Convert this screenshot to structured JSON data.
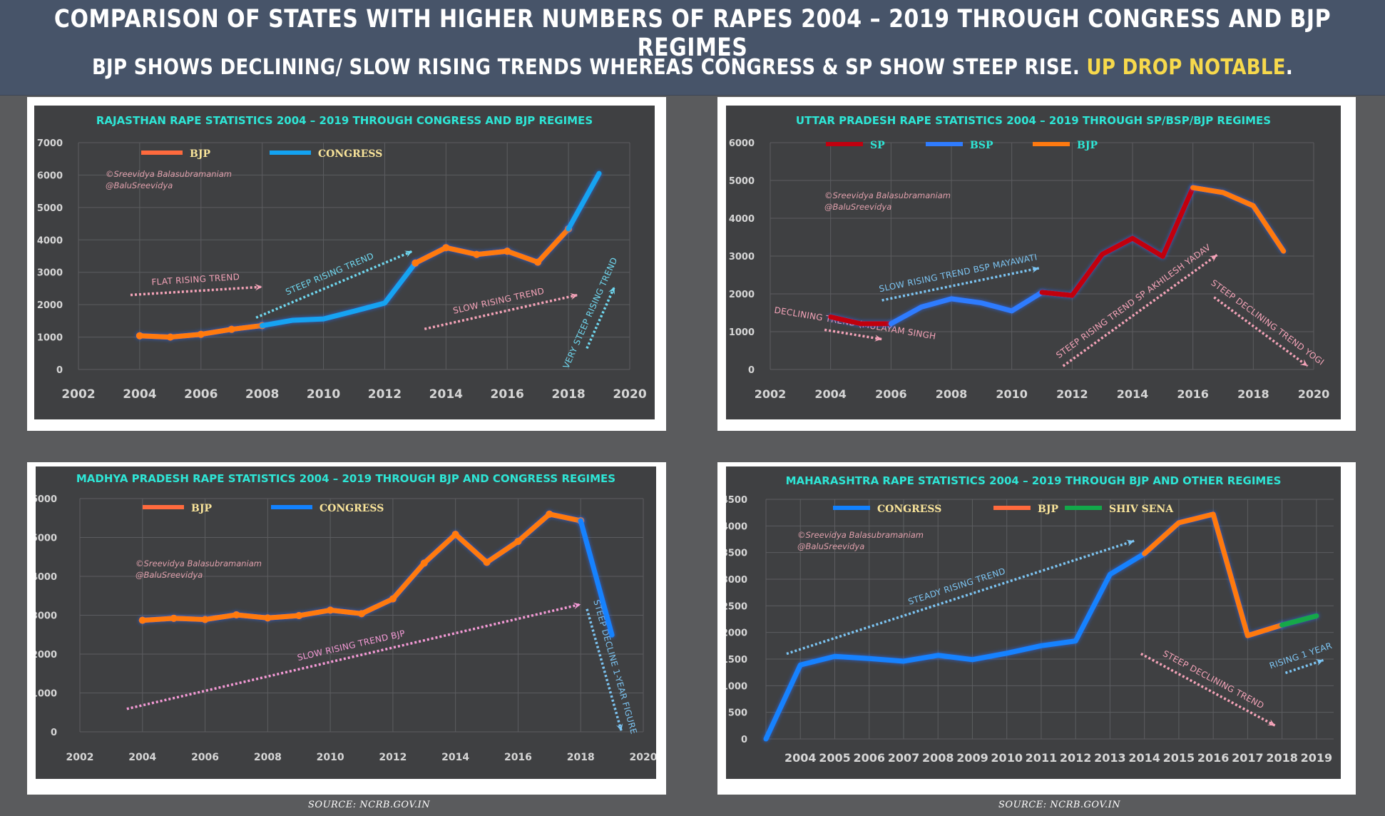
{
  "banner": {
    "title": "COMPARISON OF STATES WITH HIGHER NUMBERS OF RAPES 2004 – 2019  THROUGH CONGRESS AND BJP REGIMES",
    "subtitle_main": "BJP SHOWS DECLINING/ SLOW RISING TRENDS WHEREAS CONGRESS & SP SHOW STEEP RISE. ",
    "subtitle_highlight": "UP DROP NOTABLE",
    "subtitle_end": "."
  },
  "colors": {
    "banner_bg": "#475469",
    "page_bg": "#5a5b5d",
    "chart_bg": "#3f4042",
    "title_cyan": "#2ee6d6",
    "legend_label_yellow": "#f9e49a",
    "bjp_orange": "#ff7a10",
    "congress_blue": "#12a3f2",
    "congress_blue_deep": "#1282ff",
    "sp_red": "#c1000f",
    "bsp_blue": "#2f7cff",
    "shiv_sena_green": "#12a84a",
    "annotation_pink": "#f4a3b8",
    "annotation_cyan": "#6fd7ef",
    "annotation_lightblue": "#7cc4f2",
    "watermark_pink": "#e0a0ac"
  },
  "watermark": [
    "©Sreevidya Balasubramaniam",
    "@BaluSreevidya"
  ],
  "footer": {
    "source_left": "SOURCE:  NCRB.GOV.IN",
    "source_right": "SOURCE:  NCRB.GOV.IN"
  },
  "chart_data": [
    {
      "id": "rajasthan",
      "type": "line",
      "title": "RAJASTHAN RAPE STATISTICS 2004 – 2019 THROUGH CONGRESS AND BJP REGIMES",
      "xlabel": "",
      "ylabel": "",
      "xlim": [
        2002,
        2020
      ],
      "ylim": [
        0,
        7000
      ],
      "x_ticks": [
        2002,
        2004,
        2006,
        2008,
        2010,
        2012,
        2014,
        2016,
        2018,
        2020
      ],
      "y_ticks": [
        0,
        1000,
        2000,
        3000,
        4000,
        5000,
        6000,
        7000
      ],
      "grid": true,
      "legend": [
        {
          "name": "BJP",
          "color": "#ff6a3d"
        },
        {
          "name": "CONGRESS",
          "color": "#12a3f2"
        }
      ],
      "legend_position": "top-left",
      "series": [
        {
          "name": "BJP",
          "color": "#ff7a10",
          "x": [
            2004,
            2005,
            2006,
            2007,
            2008
          ],
          "values": [
            1040,
            1000,
            1085,
            1240,
            1355
          ]
        },
        {
          "name": "CONGRESS",
          "color": "#12a3f2",
          "x": [
            2008,
            2009,
            2010,
            2011,
            2012,
            2013
          ],
          "values": [
            1355,
            1520,
            1560,
            1800,
            2050,
            3285
          ]
        },
        {
          "name": "BJP",
          "color": "#ff7a10",
          "x": [
            2013,
            2014,
            2015,
            2016,
            2017,
            2018
          ],
          "values": [
            3285,
            3760,
            3550,
            3650,
            3310,
            4340
          ]
        },
        {
          "name": "CONGRESS",
          "color": "#12a3f2",
          "x": [
            2018,
            2019
          ],
          "values": [
            4340,
            6050
          ]
        }
      ],
      "annotations": [
        {
          "text": "FLAT RISING TREND",
          "color": "#f4a3b8",
          "from": [
            2003.7,
            2300
          ],
          "to": [
            2008.0,
            2550
          ]
        },
        {
          "text": "STEEP RISING TREND",
          "color": "#6fd7ef",
          "from": [
            2007.8,
            1600
          ],
          "to": [
            2012.9,
            3650
          ]
        },
        {
          "text": "SLOW RISING TREND",
          "color": "#f4a3b8",
          "from": [
            2013.3,
            1250
          ],
          "to": [
            2018.3,
            2300
          ]
        },
        {
          "text": "VERY STEEP RISING TREND",
          "color": "#6fd7ef",
          "from": [
            2018.6,
            650
          ],
          "to": [
            2019.5,
            2550
          ]
        }
      ]
    },
    {
      "id": "uttar-pradesh",
      "type": "line",
      "title": "UTTAR PRADESH RAPE STATISTICS 2004 – 2019  THROUGH SP/BSP/BJP REGIMES",
      "xlabel": "",
      "ylabel": "",
      "xlim": [
        2002,
        2020
      ],
      "ylim": [
        0,
        6000
      ],
      "x_ticks": [
        2002,
        2004,
        2006,
        2008,
        2010,
        2012,
        2014,
        2016,
        2018,
        2020
      ],
      "y_ticks": [
        0,
        1000,
        2000,
        3000,
        4000,
        5000,
        6000
      ],
      "grid": true,
      "legend": [
        {
          "name": "SP",
          "color": "#c1000f"
        },
        {
          "name": "BSP",
          "color": "#2f7cff"
        },
        {
          "name": "BJP",
          "color": "#ff7a10"
        }
      ],
      "legend_position": "top-left",
      "series": [
        {
          "name": "SP",
          "color": "#c1000f",
          "x": [
            2004,
            2005,
            2006
          ],
          "values": [
            1390,
            1210,
            1210
          ]
        },
        {
          "name": "BSP",
          "color": "#2f7cff",
          "x": [
            2006,
            2007,
            2008,
            2009,
            2010,
            2011
          ],
          "values": [
            1210,
            1650,
            1870,
            1760,
            1550,
            2040
          ]
        },
        {
          "name": "SP",
          "color": "#c1000f",
          "x": [
            2011,
            2012,
            2013,
            2014,
            2015,
            2016
          ],
          "values": [
            2040,
            1960,
            3050,
            3470,
            2990,
            4810
          ]
        },
        {
          "name": "BJP",
          "color": "#ff7a10",
          "x": [
            2016,
            2017,
            2018,
            2019
          ],
          "values": [
            4810,
            4680,
            4330,
            3130
          ]
        }
      ],
      "annotations": [
        {
          "text": "DECLINING TREND (MULAYAM SINGH",
          "color": "#f4a3b8",
          "from": [
            2003.8,
            1050
          ],
          "to": [
            2005.7,
            800
          ]
        },
        {
          "text": "SLOW RISING TREND BSP MAYAWATI",
          "color": "#7cc4f2",
          "from": [
            2005.7,
            1830
          ],
          "to": [
            2010.9,
            2680
          ]
        },
        {
          "text": "STEEP RISING TREND SP AKHILESH YADAV",
          "color": "#f4a3b8",
          "from": [
            2011.7,
            90
          ],
          "to": [
            2016.8,
            3030
          ]
        },
        {
          "text": "STEEP DECLINING TREND YOGI",
          "color": "#f4a3b8",
          "from": [
            2016.7,
            1910
          ],
          "to": [
            2019.8,
            90
          ]
        }
      ]
    },
    {
      "id": "madhya-pradesh",
      "type": "line",
      "title": "MADHYA PRADESH RAPE STATISTICS 2004 – 2019 THROUGH BJP AND CONGRESS REGIMES",
      "xlabel": "",
      "ylabel": "",
      "xlim": [
        2002,
        2020
      ],
      "ylim": [
        0,
        6000
      ],
      "x_ticks": [
        2002,
        2004,
        2006,
        2008,
        2010,
        2012,
        2014,
        2016,
        2018,
        2020
      ],
      "y_ticks": [
        0,
        1000,
        2000,
        3000,
        4000,
        5000,
        6000
      ],
      "grid": true,
      "legend": [
        {
          "name": "BJP",
          "color": "#ff6a3d"
        },
        {
          "name": "CONGRESS",
          "color": "#1282ff"
        }
      ],
      "legend_position": "top-left",
      "series": [
        {
          "name": "BJP",
          "color": "#ff7a10",
          "x": [
            2004,
            2005,
            2006,
            2007,
            2008,
            2009,
            2010,
            2011,
            2012,
            2013,
            2014,
            2015,
            2016,
            2017,
            2018
          ],
          "values": [
            2870,
            2920,
            2890,
            3010,
            2930,
            2990,
            3130,
            3040,
            3420,
            4340,
            5080,
            4360,
            4900,
            5600,
            5430
          ]
        },
        {
          "name": "CONGRESS",
          "color": "#1282ff",
          "x": [
            2018,
            2019
          ],
          "values": [
            5430,
            2490
          ]
        }
      ],
      "annotations": [
        {
          "text": "SLOW RISING TREND BJP",
          "color": "#f49ad6",
          "from": [
            2003.5,
            590
          ],
          "to": [
            2018.0,
            3280
          ]
        },
        {
          "text": "STEEP DECLINE 1-YEAR FIGURE",
          "color": "#7cc4f2",
          "from": [
            2018.2,
            3160
          ],
          "to": [
            2019.3,
            20
          ]
        }
      ]
    },
    {
      "id": "maharashtra",
      "type": "line",
      "title": "MAHARASHTRA RAPE STATISTICS 2004 – 2019 THROUGH BJP AND OTHER REGIMES",
      "xlabel": "",
      "ylabel": "",
      "xlim": [
        2003,
        2019.5
      ],
      "ylim": [
        0,
        4500
      ],
      "x_ticks": [
        2004,
        2005,
        2006,
        2007,
        2008,
        2009,
        2010,
        2011,
        2012,
        2013,
        2014,
        2015,
        2016,
        2017,
        2018,
        2019
      ],
      "y_ticks": [
        0,
        500,
        1000,
        1500,
        2000,
        2500,
        3000,
        3500,
        4000,
        4500
      ],
      "grid": true,
      "legend": [
        {
          "name": "CONGRESS",
          "color": "#1282ff"
        },
        {
          "name": "BJP",
          "color": "#ff6a3d"
        },
        {
          "name": "SHIV SENA",
          "color": "#12a84a"
        }
      ],
      "legend_position": "top-center",
      "series": [
        {
          "name": "CONGRESS",
          "color": "#1282ff",
          "x": [
            2003,
            2004,
            2005,
            2006,
            2007,
            2008,
            2009,
            2010,
            2011,
            2012,
            2013,
            2014
          ],
          "values": [
            0,
            1390,
            1550,
            1510,
            1460,
            1570,
            1490,
            1610,
            1750,
            1840,
            3090,
            3480
          ]
        },
        {
          "name": "BJP",
          "color": "#ff7a10",
          "x": [
            2014,
            2015,
            2016,
            2017,
            2018
          ],
          "values": [
            3480,
            4060,
            4220,
            1940,
            2140
          ]
        },
        {
          "name": "SHIV SENA",
          "color": "#12a84a",
          "x": [
            2018,
            2019
          ],
          "values": [
            2140,
            2310
          ]
        }
      ],
      "annotations": [
        {
          "text": "STEADY RISING TREND",
          "color": "#7cc4f2",
          "from": [
            2003.6,
            1600
          ],
          "to": [
            2013.7,
            3720
          ]
        },
        {
          "text": "STEEP DECLINING TREND",
          "color": "#f4a3b8",
          "from": [
            2013.9,
            1600
          ],
          "to": [
            2017.8,
            250
          ]
        },
        {
          "text": "RISING 1 YEAR",
          "color": "#7cc4f2",
          "from": [
            2018.1,
            1240
          ],
          "to": [
            2019.2,
            1480
          ]
        }
      ]
    }
  ]
}
